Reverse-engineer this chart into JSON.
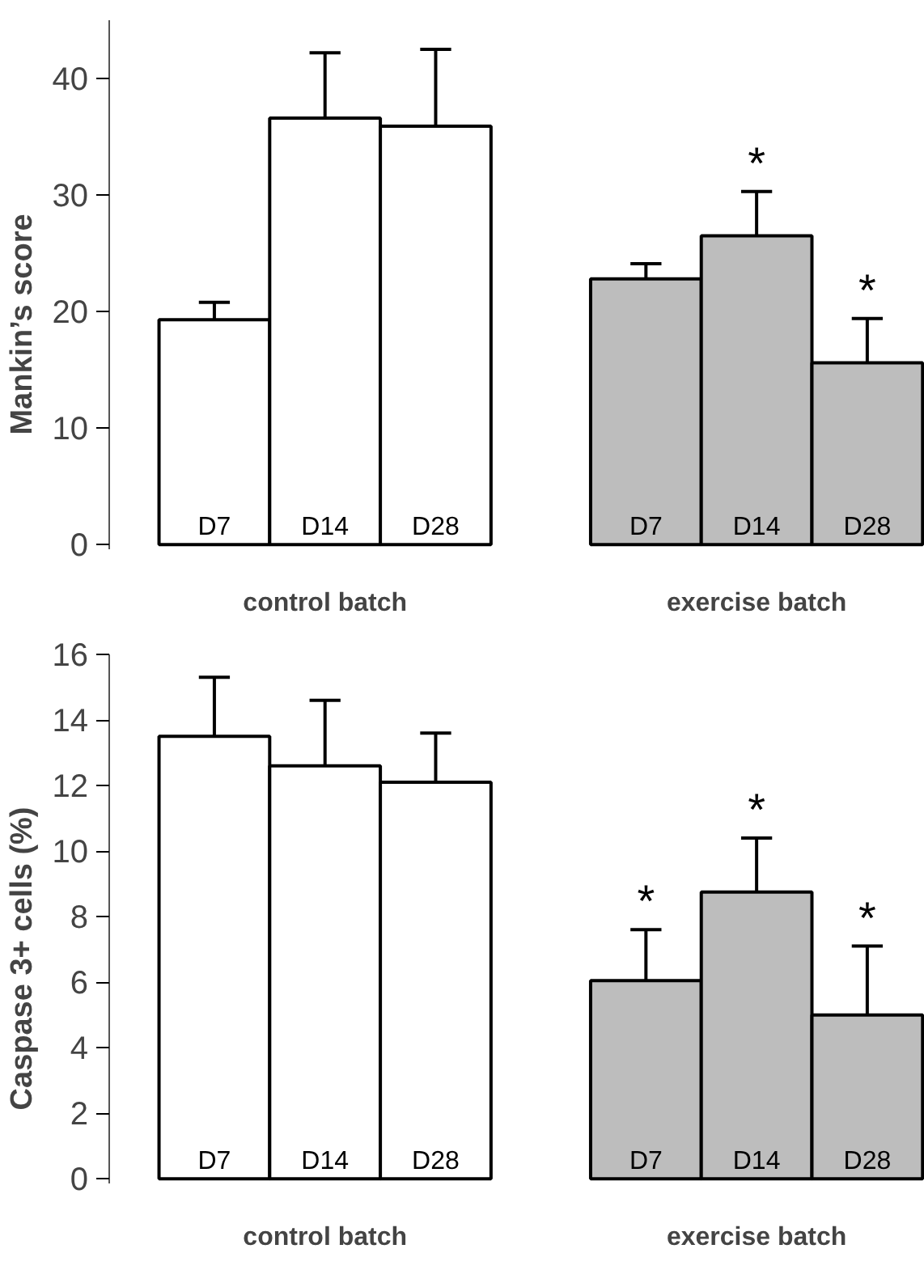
{
  "chart_data": [
    {
      "type": "bar",
      "ylabel": "Mankin’s score",
      "categories": [
        "D7",
        "D14",
        "D28",
        "D7",
        "D14",
        "D28"
      ],
      "values": [
        19.3,
        36.6,
        35.9,
        22.8,
        26.5,
        15.6
      ],
      "colors": [
        "#ffffff",
        "#ffffff",
        "#ffffff",
        "#bdbdbd",
        "#bdbdbd",
        "#bdbdbd"
      ],
      "errors": [
        [
          19.3,
          20.8
        ],
        [
          36.6,
          42.2
        ],
        [
          35.9,
          42.5
        ],
        [
          22.8,
          24.1
        ],
        [
          26.5,
          30.3
        ],
        [
          15.6,
          19.4
        ]
      ],
      "value_labels": [
        null,
        null,
        null,
        null,
        "*",
        "*"
      ],
      "ylim": [
        0,
        45
      ],
      "yticks": [
        0,
        10,
        20,
        30,
        40
      ],
      "grid": false,
      "annotations": [
        "control batch",
        "exercise batch"
      ]
    },
    {
      "type": "bar",
      "ylabel": "Caspase 3+ cells (%)",
      "categories": [
        "D7",
        "D14",
        "D28",
        "D7",
        "D14",
        "D28"
      ],
      "values": [
        13.5,
        12.6,
        12.1,
        6.05,
        8.75,
        5.0
      ],
      "colors": [
        "#ffffff",
        "#ffffff",
        "#ffffff",
        "#bdbdbd",
        "#bdbdbd",
        "#bdbdbd"
      ],
      "errors": [
        [
          13.5,
          15.3
        ],
        [
          12.6,
          14.6
        ],
        [
          12.1,
          13.6
        ],
        [
          6.05,
          7.6
        ],
        [
          8.75,
          10.4
        ],
        [
          5.0,
          7.1
        ]
      ],
      "value_labels": [
        null,
        null,
        null,
        "*",
        "*",
        "*"
      ],
      "ylim": [
        0,
        16
      ],
      "yticks": [
        0,
        2,
        4,
        6,
        8,
        10,
        12,
        14,
        16
      ],
      "grid": false,
      "annotations": [
        "control batch",
        "exercise batch"
      ]
    }
  ]
}
